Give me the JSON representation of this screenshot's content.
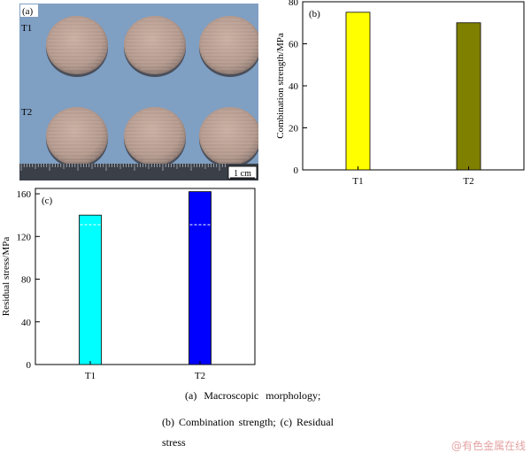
{
  "panel_a": {
    "label": "(a)",
    "row_labels": [
      "T1",
      "T2"
    ],
    "scale_bar_label": "1 cm",
    "colors": {
      "background": "#7f9fc3",
      "sample": "#b59a8e",
      "ruler": "#3a3f48"
    }
  },
  "captions": {
    "line1": "(a)  Macroscopic  morphology;",
    "line2": "(b)  Combination  strength;  (c)  Residual",
    "line3": "stress"
  },
  "watermark": "@有色金属在线",
  "chart_data": [
    {
      "panel": "(b)",
      "type": "bar",
      "categories": [
        "T1",
        "T2"
      ],
      "values": [
        75,
        70
      ],
      "colors": [
        "#ffff00",
        "#808000"
      ],
      "title": "",
      "xlabel": "",
      "ylabel": "Combination strength/MPa",
      "ylim": [
        0,
        80
      ],
      "yticks": [
        0,
        20,
        40,
        60,
        80
      ],
      "grid": false
    },
    {
      "panel": "(c)",
      "type": "bar",
      "categories": [
        "T1",
        "T2"
      ],
      "values": [
        140,
        162
      ],
      "colors": [
        "#00ffff",
        "#0000ff"
      ],
      "dashed_reference_value": 131,
      "title": "",
      "xlabel": "",
      "ylabel": "Residual stress/MPa",
      "ylim": [
        0,
        165
      ],
      "yticks": [
        0,
        40,
        80,
        120,
        160
      ],
      "grid": false
    }
  ]
}
